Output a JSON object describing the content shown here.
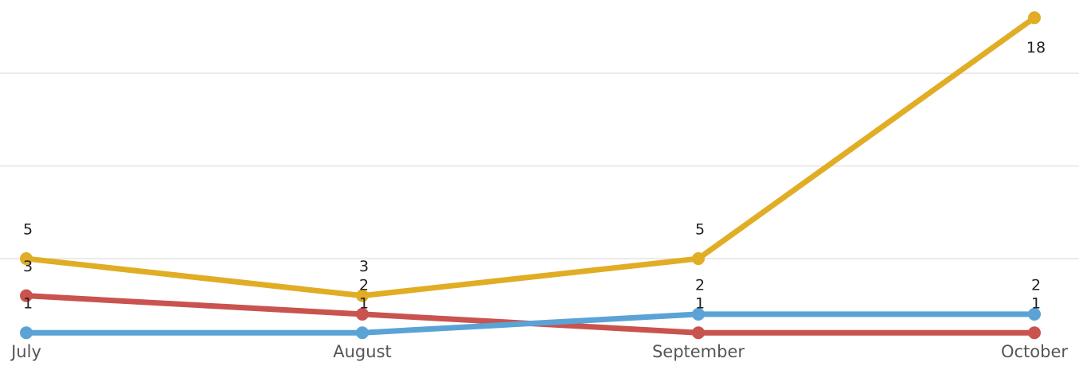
{
  "chart_data": {
    "type": "line",
    "categories": [
      "July",
      "August",
      "September",
      "October"
    ],
    "series": [
      {
        "color": "#e0ad25",
        "values": [
          5,
          3,
          5,
          18
        ]
      },
      {
        "color": "#c9534f",
        "values": [
          3,
          2,
          1,
          1
        ]
      },
      {
        "color": "#5ba3d6",
        "values": [
          1,
          1,
          2,
          2
        ]
      }
    ],
    "ylim": [
      0,
      19
    ],
    "yticks": [
      5,
      10,
      15
    ],
    "grid": true
  }
}
